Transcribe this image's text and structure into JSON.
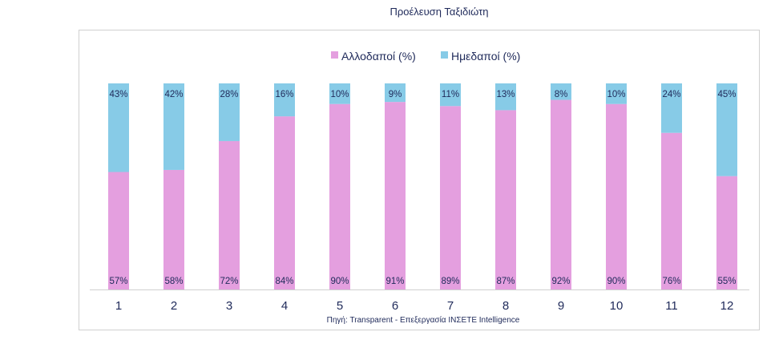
{
  "chart_data": {
    "type": "bar",
    "stacked": true,
    "title": "Προέλευση Ταξιδιώτη",
    "categories": [
      "1",
      "2",
      "3",
      "4",
      "5",
      "6",
      "7",
      "8",
      "9",
      "10",
      "11",
      "12"
    ],
    "series": [
      {
        "name": "Αλλοδαποί (%)",
        "color": "#e49fdf",
        "values": [
          57,
          58,
          72,
          84,
          90,
          91,
          89,
          87,
          92,
          90,
          76,
          55
        ]
      },
      {
        "name": "Ημεδαποί (%)",
        "color": "#87cbe7",
        "values": [
          43,
          42,
          28,
          16,
          10,
          9,
          11,
          13,
          8,
          10,
          24,
          45
        ]
      }
    ],
    "ylim": [
      0,
      100
    ],
    "legend": "top",
    "grid": false,
    "source": "Πηγή: Transparent - Επεξεργασία INΣETE Intelligence"
  }
}
